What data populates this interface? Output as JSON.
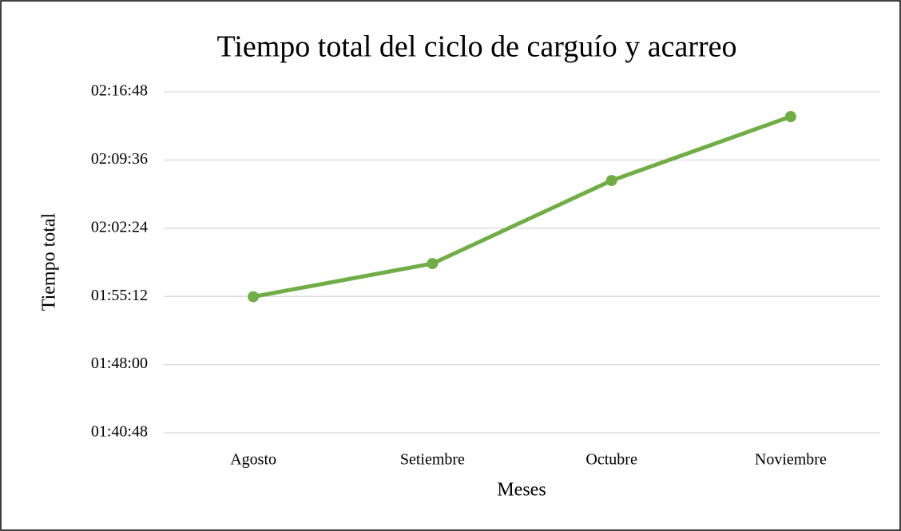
{
  "chart_data": {
    "type": "line",
    "title": "Tiempo total del ciclo de carguío y acarreo",
    "x_label": "Meses",
    "y_label": "Tiempo total",
    "categories": [
      "Agosto",
      "Setiembre",
      "Octubre",
      "Noviembre"
    ],
    "series": [
      {
        "name": "Tiempo total",
        "color": "#70ad47",
        "values": [
          6910,
          7120,
          7646,
          8051
        ]
      }
    ],
    "ylim": [
      6048,
      8208
    ],
    "yticks": [
      {
        "value": 6048,
        "label": "01:40:48"
      },
      {
        "value": 6480,
        "label": "01:48:00"
      },
      {
        "value": 6912,
        "label": "01:55:12"
      },
      {
        "value": 7344,
        "label": "02:02:24"
      },
      {
        "value": 7776,
        "label": "02:09:36"
      },
      {
        "value": 8208,
        "label": "02:16:48"
      }
    ],
    "grid": true
  }
}
